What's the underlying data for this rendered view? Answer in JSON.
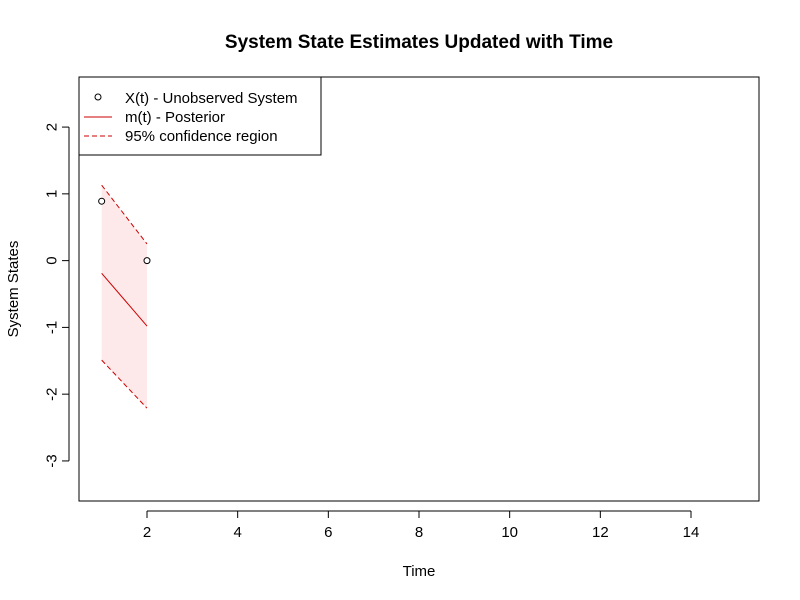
{
  "chart_data": {
    "type": "line",
    "title": "System State Estimates Updated with Time",
    "xlabel": "Time",
    "ylabel": "System States",
    "xlim": [
      0.5,
      15.5
    ],
    "ylim": [
      -3.6,
      2.75
    ],
    "x_ticks": [
      2,
      4,
      6,
      8,
      10,
      12,
      14
    ],
    "y_ticks": [
      -3,
      -2,
      -1,
      0,
      1,
      2
    ],
    "grid": false,
    "legend_position": "top-left",
    "colors": {
      "points": "#000000",
      "posterior": "#cc0000",
      "confidence": "#cc0000",
      "band_fill": "#fde9ea"
    },
    "series": [
      {
        "name": "X(t) - Unobserved System",
        "kind": "points",
        "x": [
          1,
          2
        ],
        "y": [
          0.89,
          0.0
        ]
      },
      {
        "name": "m(t) - Posterior",
        "kind": "line",
        "x": [
          1,
          2
        ],
        "y": [
          -0.19,
          -0.98
        ]
      },
      {
        "name": "95% confidence region",
        "kind": "dashed-band",
        "x": [
          1,
          2
        ],
        "upper": [
          1.13,
          0.25
        ],
        "lower": [
          -1.49,
          -2.21
        ]
      }
    ]
  }
}
